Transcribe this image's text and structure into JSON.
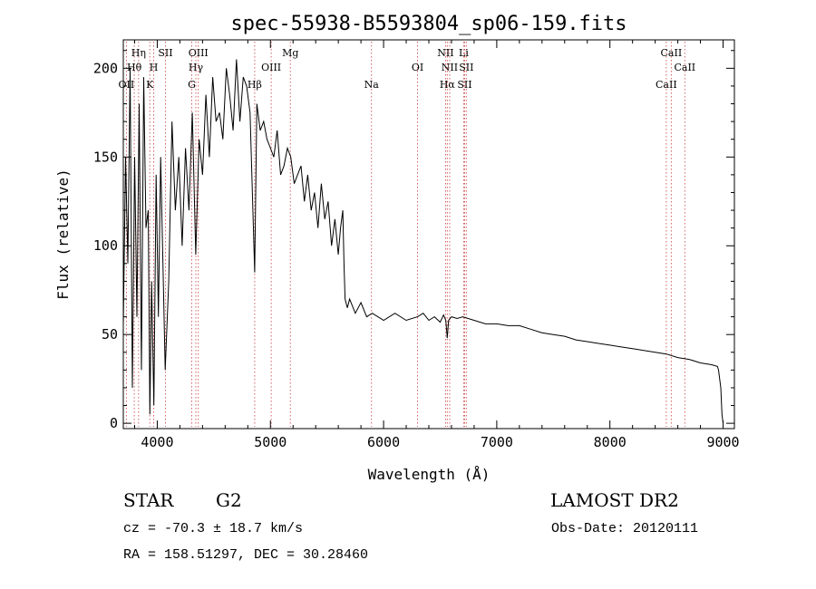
{
  "chart_data": {
    "type": "line",
    "title": "spec-55938-B5593804_sp06-159.fits",
    "xlabel": "Wavelength (Å)",
    "ylabel": "Flux (relative)",
    "xlim": [
      3700,
      9100
    ],
    "ylim": [
      -3,
      216
    ],
    "xticks": [
      4000,
      5000,
      6000,
      7000,
      8000,
      9000
    ],
    "yticks": [
      0,
      50,
      100,
      150,
      200
    ],
    "grid": false,
    "series": [
      {
        "x": [
          3700,
          3720,
          3740,
          3760,
          3780,
          3800,
          3820,
          3840,
          3860,
          3880,
          3900,
          3920,
          3935,
          3950,
          3970,
          3990,
          4010,
          4030,
          4050,
          4070,
          4101,
          4130,
          4160,
          4190,
          4220,
          4250,
          4280,
          4310,
          4340,
          4370,
          4400,
          4430,
          4460,
          4490,
          4520,
          4550,
          4580,
          4610,
          4640,
          4670,
          4700,
          4730,
          4760,
          4790,
          4820,
          4861,
          4880,
          4910,
          4940,
          4970,
          5000,
          5030,
          5060,
          5090,
          5120,
          5150,
          5180,
          5210,
          5240,
          5270,
          5300,
          5330,
          5360,
          5390,
          5420,
          5450,
          5480,
          5510,
          5540,
          5570,
          5600,
          5620,
          5640,
          5650,
          5660,
          5680,
          5700,
          5750,
          5800,
          5850,
          5900,
          5950,
          6000,
          6100,
          6200,
          6300,
          6350,
          6400,
          6450,
          6500,
          6530,
          6550,
          6563,
          6575,
          6600,
          6650,
          6700,
          6800,
          6900,
          7000,
          7100,
          7200,
          7300,
          7400,
          7500,
          7600,
          7700,
          7800,
          7900,
          8000,
          8100,
          8200,
          8300,
          8400,
          8500,
          8600,
          8700,
          8800,
          8900,
          8950,
          8960,
          8980,
          8990,
          9000
        ],
        "y": [
          55,
          150,
          90,
          200,
          20,
          150,
          60,
          180,
          30,
          195,
          110,
          120,
          5,
          80,
          10,
          140,
          60,
          150,
          90,
          30,
          80,
          170,
          120,
          150,
          100,
          155,
          120,
          175,
          95,
          160,
          140,
          185,
          150,
          195,
          170,
          175,
          160,
          200,
          185,
          165,
          205,
          170,
          195,
          190,
          175,
          85,
          180,
          165,
          170,
          160,
          155,
          150,
          165,
          140,
          145,
          155,
          150,
          135,
          140,
          145,
          125,
          140,
          120,
          130,
          110,
          135,
          115,
          125,
          100,
          115,
          95,
          110,
          120,
          90,
          70,
          65,
          70,
          62,
          68,
          60,
          62,
          60,
          58,
          62,
          58,
          60,
          62,
          58,
          60,
          57,
          61,
          58,
          48,
          58,
          60,
          59,
          60,
          58,
          56,
          56,
          55,
          55,
          53,
          51,
          50,
          49,
          47,
          46,
          45,
          44,
          43,
          42,
          41,
          40,
          39,
          37,
          36,
          34,
          33,
          32,
          30,
          20,
          5,
          0
        ],
        "color": "#000000"
      }
    ],
    "lines": [
      {
        "label": "OII",
        "x": 3727,
        "row": 3
      },
      {
        "label": "Hθ",
        "x": 3797,
        "row": 2
      },
      {
        "label": "Hη",
        "x": 3835,
        "row": 1
      },
      {
        "label": "K",
        "x": 3934,
        "row": 3
      },
      {
        "label": "H",
        "x": 3969,
        "row": 2
      },
      {
        "label": "SII",
        "x": 4072,
        "row": 1
      },
      {
        "label": "G",
        "x": 4305,
        "row": 3
      },
      {
        "label": "Hγ",
        "x": 4341,
        "row": 2
      },
      {
        "label": "OIII",
        "x": 4363,
        "row": 1
      },
      {
        "label": "Hβ",
        "x": 4861,
        "row": 3
      },
      {
        "label": "OIII",
        "x": 5007,
        "row": 2
      },
      {
        "label": "Mg",
        "x": 5176,
        "row": 1
      },
      {
        "label": "Na",
        "x": 5893,
        "row": 3
      },
      {
        "label": "OI",
        "x": 6300,
        "row": 2
      },
      {
        "label": "NII",
        "x": 6548,
        "row": 1
      },
      {
        "label": "Hα",
        "x": 6563,
        "row": 3
      },
      {
        "label": "NII",
        "x": 6584,
        "row": 2
      },
      {
        "label": "Li",
        "x": 6708,
        "row": 1
      },
      {
        "label": "SII",
        "x": 6716,
        "row": 3
      },
      {
        "label": "SII",
        "x": 6731,
        "row": 2
      },
      {
        "label": "CaII",
        "x": 8498,
        "row": 3
      },
      {
        "label": "CaII",
        "x": 8542,
        "row": 1
      },
      {
        "label": "CaII",
        "x": 8662,
        "row": 2
      }
    ]
  },
  "info": {
    "class": "STAR",
    "subclass": "G2",
    "survey": "LAMOST DR2",
    "cz": "cz = -70.3 ± 18.7 km/s",
    "obs_date": "Obs-Date: 20120111",
    "radec": "RA = 158.51297, DEC =  30.28460"
  }
}
